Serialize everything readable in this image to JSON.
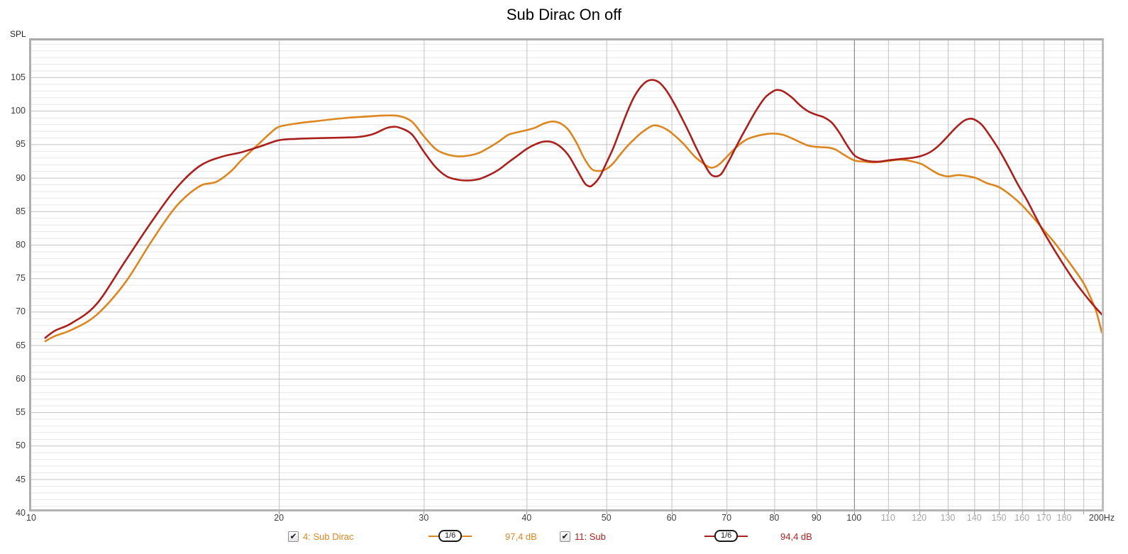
{
  "title": "Sub Dirac On off",
  "y_axis_title": "SPL",
  "chart_data": {
    "type": "line",
    "title": "Sub Dirac On off",
    "ylabel": "SPL",
    "x_scale": "log",
    "x_range": [
      10,
      200
    ],
    "y_range": [
      40.5,
      110.5
    ],
    "y_minor_step": 1,
    "y_major_step": 5,
    "grid": true,
    "x_gridlines": [
      20,
      30,
      40,
      50,
      60,
      70,
      80,
      90,
      100,
      110,
      120,
      130,
      140,
      150,
      160,
      170,
      180,
      190
    ],
    "x_decade_gridline": 100,
    "x_tick_labels": [
      {
        "text": "10",
        "f": 10,
        "muted": false
      },
      {
        "text": "20",
        "f": 20,
        "muted": false
      },
      {
        "text": "30",
        "f": 30,
        "muted": false
      },
      {
        "text": "40",
        "f": 40,
        "muted": false
      },
      {
        "text": "50",
        "f": 50,
        "muted": false
      },
      {
        "text": "60",
        "f": 60,
        "muted": false
      },
      {
        "text": "70",
        "f": 70,
        "muted": false
      },
      {
        "text": "80",
        "f": 80,
        "muted": false
      },
      {
        "text": "90",
        "f": 90,
        "muted": false
      },
      {
        "text": "100",
        "f": 100,
        "muted": false
      },
      {
        "text": "110",
        "f": 110,
        "muted": true
      },
      {
        "text": "120",
        "f": 120,
        "muted": true
      },
      {
        "text": "130",
        "f": 130,
        "muted": true
      },
      {
        "text": "140",
        "f": 140,
        "muted": true
      },
      {
        "text": "150",
        "f": 150,
        "muted": true
      },
      {
        "text": "160",
        "f": 160,
        "muted": true
      },
      {
        "text": "170",
        "f": 170,
        "muted": true
      },
      {
        "text": "180",
        "f": 180,
        "muted": true
      },
      {
        "text": "200Hz",
        "f": 200,
        "muted": false
      }
    ],
    "y_tick_labels": [
      105,
      100,
      95,
      90,
      85,
      80,
      75,
      70,
      65,
      60,
      55,
      50,
      45,
      40
    ],
    "legend_position": "bottom",
    "series": [
      {
        "name": "4: Sub Dirac",
        "color": "#DD861F",
        "smoothing": "1/6",
        "legend_value": "97,4 dB",
        "checked": true,
        "points": [
          [
            10.4,
            65.6
          ],
          [
            10.7,
            66.4
          ],
          [
            11.2,
            67.3
          ],
          [
            12,
            69.5
          ],
          [
            13,
            74.3
          ],
          [
            14,
            80.5
          ],
          [
            15,
            85.7
          ],
          [
            16,
            88.7
          ],
          [
            16.8,
            89.4
          ],
          [
            17.5,
            91.0
          ],
          [
            18,
            92.6
          ],
          [
            19,
            95.3
          ],
          [
            19.5,
            96.6
          ],
          [
            20,
            97.6
          ],
          [
            21,
            98.1
          ],
          [
            22,
            98.4
          ],
          [
            24,
            98.9
          ],
          [
            26,
            99.2
          ],
          [
            27,
            99.3
          ],
          [
            28,
            99.2
          ],
          [
            29,
            98.4
          ],
          [
            30,
            96.2
          ],
          [
            31,
            94.3
          ],
          [
            32,
            93.5
          ],
          [
            33,
            93.2
          ],
          [
            34,
            93.3
          ],
          [
            35,
            93.7
          ],
          [
            36,
            94.5
          ],
          [
            37,
            95.4
          ],
          [
            38,
            96.4
          ],
          [
            39,
            96.8
          ],
          [
            40,
            97.1
          ],
          [
            41,
            97.5
          ],
          [
            42,
            98.1
          ],
          [
            43,
            98.4
          ],
          [
            44,
            98.1
          ],
          [
            45,
            97.1
          ],
          [
            46,
            95.2
          ],
          [
            47,
            92.9
          ],
          [
            48,
            91.3
          ],
          [
            49,
            91.0
          ],
          [
            50,
            91.3
          ],
          [
            51,
            92.2
          ],
          [
            52,
            93.5
          ],
          [
            53,
            94.7
          ],
          [
            54,
            95.7
          ],
          [
            55,
            96.6
          ],
          [
            56,
            97.3
          ],
          [
            57,
            97.8
          ],
          [
            58,
            97.7
          ],
          [
            59,
            97.3
          ],
          [
            60,
            96.7
          ],
          [
            62,
            95.1
          ],
          [
            64,
            93.2
          ],
          [
            66,
            91.9
          ],
          [
            67,
            91.5
          ],
          [
            68,
            91.7
          ],
          [
            69,
            92.3
          ],
          [
            70,
            93.1
          ],
          [
            72,
            94.6
          ],
          [
            74,
            95.7
          ],
          [
            76,
            96.2
          ],
          [
            78,
            96.5
          ],
          [
            80,
            96.6
          ],
          [
            82,
            96.4
          ],
          [
            84,
            95.9
          ],
          [
            86,
            95.3
          ],
          [
            88,
            94.8
          ],
          [
            90,
            94.6
          ],
          [
            93,
            94.5
          ],
          [
            95,
            94.2
          ],
          [
            97,
            93.5
          ],
          [
            100,
            92.6
          ],
          [
            103,
            92.4
          ],
          [
            106,
            92.3
          ],
          [
            110,
            92.5
          ],
          [
            114,
            92.7
          ],
          [
            118,
            92.4
          ],
          [
            121,
            92.0
          ],
          [
            124,
            91.2
          ],
          [
            127,
            90.5
          ],
          [
            130,
            90.2
          ],
          [
            134,
            90.4
          ],
          [
            138,
            90.2
          ],
          [
            141,
            89.9
          ],
          [
            145,
            89.2
          ],
          [
            150,
            88.6
          ],
          [
            155,
            87.4
          ],
          [
            160,
            85.9
          ],
          [
            165,
            84.1
          ],
          [
            170,
            82.2
          ],
          [
            175,
            80.4
          ],
          [
            180,
            78.4
          ],
          [
            185,
            76.4
          ],
          [
            190,
            74.3
          ],
          [
            194,
            72.0
          ],
          [
            197,
            70.0
          ],
          [
            200,
            66.9
          ]
        ]
      },
      {
        "name": "11: Sub",
        "color": "#A9201D",
        "smoothing": "1/6",
        "legend_value": "94,4 dB",
        "checked": true,
        "points": [
          [
            10.4,
            66.1
          ],
          [
            10.7,
            67.2
          ],
          [
            11.2,
            68.3
          ],
          [
            12,
            71.1
          ],
          [
            13,
            77.5
          ],
          [
            14,
            83.4
          ],
          [
            15,
            88.4
          ],
          [
            16,
            91.7
          ],
          [
            17,
            93.1
          ],
          [
            18,
            93.8
          ],
          [
            19,
            94.7
          ],
          [
            20,
            95.6
          ],
          [
            21,
            95.8
          ],
          [
            22,
            95.9
          ],
          [
            24,
            96.0
          ],
          [
            25,
            96.1
          ],
          [
            26,
            96.5
          ],
          [
            27,
            97.4
          ],
          [
            27.5,
            97.6
          ],
          [
            28,
            97.5
          ],
          [
            29,
            96.5
          ],
          [
            30,
            93.9
          ],
          [
            31,
            91.6
          ],
          [
            32,
            90.2
          ],
          [
            33,
            89.7
          ],
          [
            34,
            89.6
          ],
          [
            35,
            89.8
          ],
          [
            36,
            90.4
          ],
          [
            37,
            91.2
          ],
          [
            38,
            92.3
          ],
          [
            39,
            93.3
          ],
          [
            40,
            94.3
          ],
          [
            41,
            95.0
          ],
          [
            42,
            95.4
          ],
          [
            43,
            95.3
          ],
          [
            44,
            94.6
          ],
          [
            45,
            93.3
          ],
          [
            46,
            91.3
          ],
          [
            47,
            89.3
          ],
          [
            47.5,
            88.8
          ],
          [
            48,
            88.8
          ],
          [
            49,
            90.0
          ],
          [
            50,
            92.2
          ],
          [
            51,
            94.5
          ],
          [
            52,
            97.2
          ],
          [
            53,
            99.8
          ],
          [
            54,
            102.0
          ],
          [
            55,
            103.5
          ],
          [
            56,
            104.4
          ],
          [
            57,
            104.6
          ],
          [
            58,
            104.2
          ],
          [
            59,
            103.2
          ],
          [
            60,
            101.8
          ],
          [
            61,
            100.2
          ],
          [
            62,
            98.5
          ],
          [
            63,
            96.8
          ],
          [
            64,
            95.0
          ],
          [
            65,
            93.3
          ],
          [
            66,
            91.7
          ],
          [
            67,
            90.5
          ],
          [
            68,
            90.2
          ],
          [
            69,
            90.6
          ],
          [
            70,
            91.9
          ],
          [
            71,
            93.3
          ],
          [
            72,
            94.8
          ],
          [
            74,
            97.5
          ],
          [
            76,
            100.0
          ],
          [
            78,
            102.0
          ],
          [
            80,
            103.0
          ],
          [
            81,
            103.1
          ],
          [
            82,
            102.9
          ],
          [
            84,
            102.0
          ],
          [
            86,
            100.8
          ],
          [
            88,
            99.9
          ],
          [
            90,
            99.4
          ],
          [
            92,
            99.0
          ],
          [
            94,
            98.2
          ],
          [
            96,
            96.7
          ],
          [
            98,
            94.9
          ],
          [
            100,
            93.4
          ],
          [
            102,
            92.8
          ],
          [
            104,
            92.5
          ],
          [
            107,
            92.4
          ],
          [
            110,
            92.6
          ],
          [
            114,
            92.8
          ],
          [
            118,
            93.0
          ],
          [
            121,
            93.3
          ],
          [
            124,
            93.9
          ],
          [
            127,
            94.9
          ],
          [
            130,
            96.2
          ],
          [
            133,
            97.5
          ],
          [
            136,
            98.5
          ],
          [
            138,
            98.8
          ],
          [
            140,
            98.7
          ],
          [
            143,
            97.9
          ],
          [
            146,
            96.4
          ],
          [
            150,
            94.2
          ],
          [
            154,
            91.7
          ],
          [
            158,
            89.1
          ],
          [
            162,
            86.8
          ],
          [
            166,
            84.3
          ],
          [
            170,
            81.9
          ],
          [
            175,
            79.3
          ],
          [
            180,
            76.9
          ],
          [
            185,
            74.7
          ],
          [
            190,
            72.8
          ],
          [
            195,
            71.1
          ],
          [
            200,
            69.6
          ]
        ]
      }
    ]
  }
}
